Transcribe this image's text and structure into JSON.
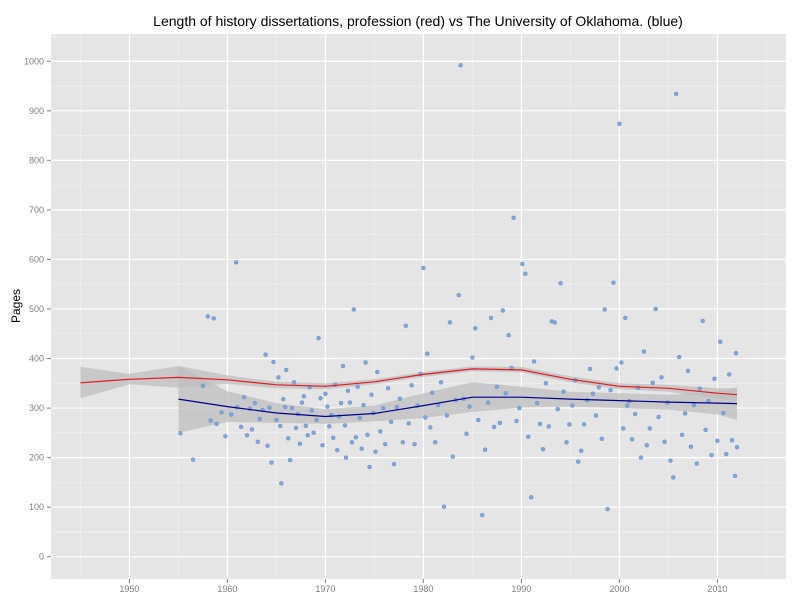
{
  "chart_data": {
    "type": "scatter",
    "title": "Length of history dissertations, profession (red) vs The University of Oklahoma. (blue)",
    "xlabel": "",
    "ylabel": "Pages",
    "xlim": [
      1942,
      2017
    ],
    "ylim": [
      -45,
      1055
    ],
    "grid": true,
    "legend": "none",
    "x_ticks": [
      "1950",
      "1960",
      "1970",
      "1980",
      "1990",
      "2000",
      "2010"
    ],
    "y_ticks": [
      "0",
      "100",
      "200",
      "300",
      "400",
      "500",
      "600",
      "700",
      "800",
      "900",
      "1000"
    ],
    "colors": {
      "background": "#e5e5e5",
      "grid_major": "#ffffff",
      "grid_minor": "#f2f2f2",
      "points": "#7ea6e0",
      "profession_line": "#e31a1c",
      "oklahoma_line": "#00008b",
      "confidence_band": "#bdbdbd"
    },
    "series": [
      {
        "name": "profession (red)",
        "type": "line",
        "color": "#e31a1c",
        "x": [
          1945,
          1950,
          1955,
          1960,
          1965,
          1970,
          1975,
          1980,
          1985,
          1990,
          1995,
          2000,
          2005,
          2010,
          2012
        ],
        "y": [
          351,
          358,
          362,
          357,
          347,
          344,
          353,
          368,
          379,
          377,
          358,
          344,
          340,
          330,
          327
        ],
        "band_upper": [
          383,
          369,
          385,
          366,
          353,
          350,
          358,
          373,
          384,
          383,
          364,
          350,
          347,
          340,
          340
        ],
        "band_lower": [
          320,
          348,
          341,
          349,
          340,
          338,
          348,
          363,
          374,
          372,
          352,
          338,
          333,
          320,
          313
        ]
      },
      {
        "name": "The University of Oklahoma. (blue)",
        "type": "line",
        "color": "#00008b",
        "x": [
          1955,
          1960,
          1965,
          1970,
          1975,
          1980,
          1985,
          1990,
          1995,
          2000,
          2005,
          2010,
          2012
        ],
        "y": [
          318,
          303,
          290,
          283,
          289,
          305,
          322,
          322,
          318,
          315,
          312,
          310,
          309
        ],
        "band_upper": [
          385,
          334,
          310,
          298,
          305,
          330,
          352,
          343,
          333,
          330,
          327,
          333,
          342
        ],
        "band_lower": [
          250,
          272,
          270,
          268,
          273,
          280,
          292,
          301,
          303,
          300,
          297,
          287,
          276
        ]
      },
      {
        "name": "University of Oklahoma dissertations",
        "type": "scatter",
        "color": "#7ea6e0",
        "points": [
          [
            1955.2,
            249
          ],
          [
            1956.5,
            196
          ],
          [
            1957.5,
            345
          ],
          [
            1958.0,
            485
          ],
          [
            1958.6,
            481
          ],
          [
            1958.3,
            275
          ],
          [
            1958.9,
            268
          ],
          [
            1959.4,
            291
          ],
          [
            1959.8,
            243
          ],
          [
            1960.4,
            287
          ],
          [
            1960.9,
            594
          ],
          [
            1961.0,
            302
          ],
          [
            1961.4,
            262
          ],
          [
            1961.7,
            322
          ],
          [
            1962.0,
            245
          ],
          [
            1962.3,
            299
          ],
          [
            1962.5,
            257
          ],
          [
            1962.8,
            310
          ],
          [
            1963.1,
            232
          ],
          [
            1963.3,
            278
          ],
          [
            1963.6,
            296
          ],
          [
            1963.9,
            408
          ],
          [
            1964.1,
            224
          ],
          [
            1964.3,
            301
          ],
          [
            1964.5,
            190
          ],
          [
            1964.7,
            393
          ],
          [
            1965.0,
            276
          ],
          [
            1965.2,
            362
          ],
          [
            1965.4,
            264
          ],
          [
            1965.5,
            148
          ],
          [
            1965.7,
            318
          ],
          [
            1965.9,
            302
          ],
          [
            1966.0,
            377
          ],
          [
            1966.2,
            239
          ],
          [
            1966.4,
            195
          ],
          [
            1966.6,
            300
          ],
          [
            1966.8,
            352
          ],
          [
            1967.0,
            260
          ],
          [
            1967.2,
            288
          ],
          [
            1967.4,
            228
          ],
          [
            1967.6,
            311
          ],
          [
            1967.8,
            324
          ],
          [
            1968.0,
            264
          ],
          [
            1968.2,
            245
          ],
          [
            1968.4,
            342
          ],
          [
            1968.6,
            295
          ],
          [
            1968.8,
            250
          ],
          [
            1969.1,
            276
          ],
          [
            1969.3,
            441
          ],
          [
            1969.5,
            320
          ],
          [
            1969.7,
            225
          ],
          [
            1970.0,
            329
          ],
          [
            1970.2,
            303
          ],
          [
            1970.4,
            263
          ],
          [
            1970.6,
            286
          ],
          [
            1970.8,
            240
          ],
          [
            1971.0,
            347
          ],
          [
            1971.2,
            215
          ],
          [
            1971.4,
            283
          ],
          [
            1971.6,
            310
          ],
          [
            1971.8,
            385
          ],
          [
            1972.0,
            265
          ],
          [
            1972.1,
            200
          ],
          [
            1972.3,
            335
          ],
          [
            1972.5,
            311
          ],
          [
            1972.7,
            231
          ],
          [
            1972.9,
            499
          ],
          [
            1973.1,
            241
          ],
          [
            1973.3,
            343
          ],
          [
            1973.5,
            280
          ],
          [
            1973.7,
            218
          ],
          [
            1973.9,
            306
          ],
          [
            1974.1,
            392
          ],
          [
            1974.3,
            246
          ],
          [
            1974.5,
            181
          ],
          [
            1974.7,
            327
          ],
          [
            1974.9,
            290
          ],
          [
            1975.1,
            212
          ],
          [
            1975.3,
            373
          ],
          [
            1975.6,
            253
          ],
          [
            1975.9,
            300
          ],
          [
            1976.1,
            227
          ],
          [
            1976.4,
            340
          ],
          [
            1976.7,
            272
          ],
          [
            1977.0,
            187
          ],
          [
            1977.3,
            302
          ],
          [
            1977.6,
            319
          ],
          [
            1977.9,
            231
          ],
          [
            1978.2,
            466
          ],
          [
            1978.5,
            269
          ],
          [
            1978.8,
            346
          ],
          [
            1979.1,
            227
          ],
          [
            1979.4,
            305
          ],
          [
            1979.7,
            369
          ],
          [
            1980.0,
            583
          ],
          [
            1980.2,
            281
          ],
          [
            1980.4,
            410
          ],
          [
            1980.7,
            261
          ],
          [
            1980.9,
            331
          ],
          [
            1981.2,
            231
          ],
          [
            1981.5,
            306
          ],
          [
            1981.8,
            352
          ],
          [
            1982.1,
            101
          ],
          [
            1982.4,
            285
          ],
          [
            1982.7,
            473
          ],
          [
            1983.0,
            202
          ],
          [
            1983.3,
            316
          ],
          [
            1983.6,
            528
          ],
          [
            1983.8,
            992
          ],
          [
            1984.1,
            319
          ],
          [
            1984.4,
            248
          ],
          [
            1984.7,
            303
          ],
          [
            1985.0,
            402
          ],
          [
            1985.3,
            461
          ],
          [
            1985.6,
            276
          ],
          [
            1986.0,
            84
          ],
          [
            1986.3,
            216
          ],
          [
            1986.6,
            311
          ],
          [
            1986.9,
            482
          ],
          [
            1987.2,
            262
          ],
          [
            1987.5,
            343
          ],
          [
            1987.8,
            270
          ],
          [
            1988.1,
            497
          ],
          [
            1988.4,
            330
          ],
          [
            1988.7,
            447
          ],
          [
            1989.0,
            381
          ],
          [
            1989.2,
            684
          ],
          [
            1989.5,
            274
          ],
          [
            1989.8,
            300
          ],
          [
            1990.1,
            591
          ],
          [
            1990.4,
            571
          ],
          [
            1990.7,
            242
          ],
          [
            1991.0,
            120
          ],
          [
            1991.3,
            394
          ],
          [
            1991.6,
            310
          ],
          [
            1991.9,
            268
          ],
          [
            1992.2,
            217
          ],
          [
            1992.5,
            350
          ],
          [
            1992.8,
            263
          ],
          [
            1993.1,
            475
          ],
          [
            1993.4,
            473
          ],
          [
            1993.7,
            298
          ],
          [
            1994.0,
            552
          ],
          [
            1994.3,
            333
          ],
          [
            1994.6,
            231
          ],
          [
            1994.9,
            267
          ],
          [
            1995.2,
            305
          ],
          [
            1995.5,
            356
          ],
          [
            1995.8,
            192
          ],
          [
            1996.1,
            214
          ],
          [
            1996.4,
            267
          ],
          [
            1996.7,
            316
          ],
          [
            1997.0,
            379
          ],
          [
            1997.3,
            329
          ],
          [
            1997.6,
            285
          ],
          [
            1997.9,
            342
          ],
          [
            1998.2,
            238
          ],
          [
            1998.5,
            499
          ],
          [
            1998.8,
            96
          ],
          [
            1999.1,
            336
          ],
          [
            1999.4,
            553
          ],
          [
            1999.7,
            380
          ],
          [
            2000.0,
            874
          ],
          [
            2000.2,
            392
          ],
          [
            2000.4,
            259
          ],
          [
            2000.6,
            482
          ],
          [
            2000.8,
            305
          ],
          [
            2001.0,
            314
          ],
          [
            2001.3,
            237
          ],
          [
            2001.6,
            288
          ],
          [
            2001.9,
            341
          ],
          [
            2002.2,
            200
          ],
          [
            2002.5,
            414
          ],
          [
            2002.8,
            225
          ],
          [
            2003.1,
            259
          ],
          [
            2003.4,
            351
          ],
          [
            2003.7,
            500
          ],
          [
            2004.0,
            282
          ],
          [
            2004.3,
            362
          ],
          [
            2004.6,
            232
          ],
          [
            2004.9,
            311
          ],
          [
            2005.2,
            194
          ],
          [
            2005.5,
            160
          ],
          [
            2005.8,
            934
          ],
          [
            2006.1,
            403
          ],
          [
            2006.4,
            246
          ],
          [
            2006.7,
            289
          ],
          [
            2007.0,
            375
          ],
          [
            2007.3,
            222
          ],
          [
            2007.6,
            306
          ],
          [
            2007.9,
            188
          ],
          [
            2008.2,
            339
          ],
          [
            2008.5,
            476
          ],
          [
            2008.8,
            256
          ],
          [
            2009.1,
            314
          ],
          [
            2009.4,
            205
          ],
          [
            2009.7,
            359
          ],
          [
            2010.0,
            234
          ],
          [
            2010.3,
            434
          ],
          [
            2010.6,
            290
          ],
          [
            2010.9,
            207
          ],
          [
            2011.2,
            368
          ],
          [
            2011.5,
            235
          ],
          [
            2011.8,
            163
          ],
          [
            2011.9,
            411
          ],
          [
            2012.0,
            221
          ]
        ]
      }
    ]
  }
}
